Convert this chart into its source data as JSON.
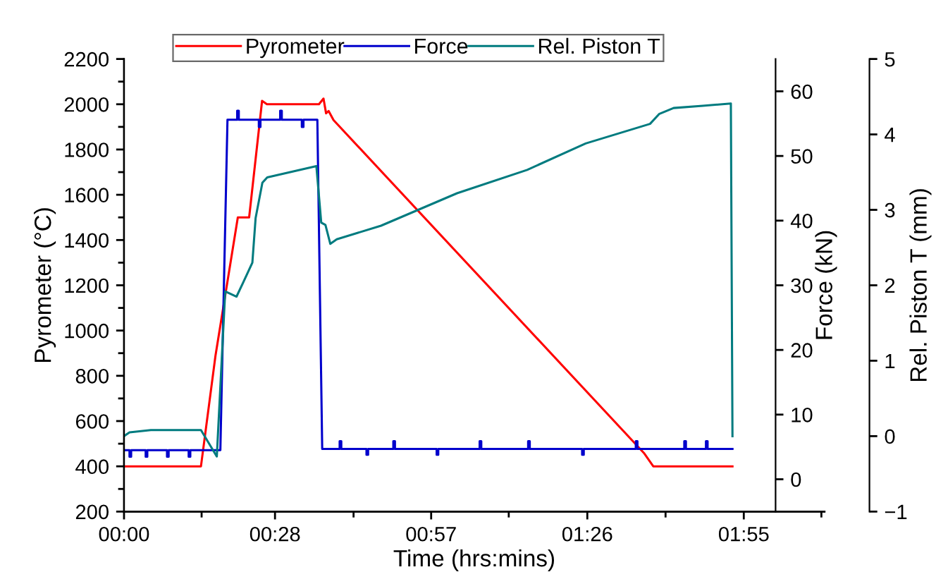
{
  "chart_data": {
    "type": "line",
    "xlabel": "Time (hrs:mins)",
    "ylabel": "Pyrometer (°C)",
    "y2label": "Force (kN)",
    "y3label": "Rel. Piston T (mm)",
    "xlim": [
      0,
      2.167
    ],
    "xticks": [
      {
        "value": 0,
        "label": "00:00"
      },
      {
        "value": 0.24,
        "label": null
      },
      {
        "value": 0.467,
        "label": "00:28"
      },
      {
        "value": 0.71,
        "label": null
      },
      {
        "value": 0.95,
        "label": "00:57"
      },
      {
        "value": 1.19,
        "label": null
      },
      {
        "value": 1.433,
        "label": "01:26"
      },
      {
        "value": 1.675,
        "label": null
      },
      {
        "value": 1.917,
        "label": "01:55"
      },
      {
        "value": 2.157,
        "label": null
      }
    ],
    "ylim": [
      200,
      2200
    ],
    "yticks": [
      200,
      {
        "value": 300,
        "label": null
      },
      400,
      {
        "value": 500,
        "label": null
      },
      600,
      {
        "value": 700,
        "label": null
      },
      800,
      {
        "value": 900,
        "label": null
      },
      1000,
      {
        "value": 1100,
        "label": null
      },
      1200,
      {
        "value": 1300,
        "label": null
      },
      1400,
      {
        "value": 1500,
        "label": null
      },
      1600,
      {
        "value": 1700,
        "label": null
      },
      1800,
      {
        "value": 1900,
        "label": null
      },
      2000,
      {
        "value": 2100,
        "label": null
      },
      2200
    ],
    "y2lim": [
      -5,
      65
    ],
    "y2ticks": [
      0,
      10,
      20,
      30,
      40,
      50,
      60
    ],
    "y3lim": [
      -1,
      5
    ],
    "y3ticks": [
      {
        "value": -1,
        "label": "−1"
      },
      0,
      1,
      2,
      3,
      4,
      5
    ],
    "grid": false,
    "legend": "top",
    "marker": "none",
    "line_style": "solid",
    "series": [
      {
        "name": "Pyrometer",
        "color": "#ff0000",
        "axis": "y",
        "x": [
          0,
          0.238,
          0.283,
          0.352,
          0.387,
          0.427,
          0.442,
          0.603,
          0.617,
          0.625,
          0.633,
          0.648,
          1.608,
          1.637,
          1.882
        ],
        "values": [
          400,
          400,
          890,
          1500,
          1500,
          2015,
          2000,
          2000,
          2025,
          1960,
          1970,
          1930,
          459,
          400,
          400
        ]
      },
      {
        "name": "Force",
        "color": "#0000cc",
        "axis": "y2",
        "x": [
          0,
          0.017,
          0.017,
          0.022,
          0.022,
          0.067,
          0.067,
          0.072,
          0.072,
          0.133,
          0.133,
          0.138,
          0.138,
          0.2,
          0.2,
          0.205,
          0.205,
          0.283,
          0.298,
          0.32,
          0.35,
          0.35,
          0.355,
          0.355,
          0.417,
          0.417,
          0.422,
          0.422,
          0.483,
          0.483,
          0.488,
          0.488,
          0.55,
          0.55,
          0.555,
          0.555,
          0.598,
          0.613,
          0.667,
          0.667,
          0.672,
          0.672,
          0.75,
          0.75,
          0.755,
          0.755,
          0.833,
          0.833,
          0.838,
          0.838,
          0.967,
          0.967,
          0.972,
          0.972,
          1.1,
          1.1,
          1.105,
          1.105,
          1.25,
          1.25,
          1.255,
          1.255,
          1.417,
          1.417,
          1.422,
          1.422,
          1.583,
          1.583,
          1.588,
          1.588,
          1.733,
          1.733,
          1.738,
          1.738,
          1.8,
          1.8,
          1.805,
          1.805,
          1.882
        ],
        "values": [
          4.5,
          4.5,
          3.5,
          3.5,
          4.5,
          4.5,
          3.5,
          3.5,
          4.5,
          4.5,
          3.5,
          3.5,
          4.5,
          4.5,
          3.5,
          3.5,
          4.5,
          4.5,
          4.5,
          55.6,
          55.6,
          57.0,
          57.0,
          55.6,
          55.6,
          54.5,
          54.5,
          55.6,
          55.6,
          57.0,
          57.0,
          55.6,
          55.6,
          54.5,
          54.5,
          55.6,
          55.6,
          4.7,
          4.7,
          5.9,
          5.9,
          4.7,
          4.7,
          3.8,
          3.8,
          4.7,
          4.7,
          5.9,
          5.9,
          4.7,
          4.7,
          3.8,
          3.8,
          4.7,
          4.7,
          5.9,
          5.9,
          4.7,
          4.7,
          5.9,
          5.9,
          4.7,
          4.7,
          3.8,
          3.8,
          4.7,
          4.7,
          5.9,
          5.9,
          4.7,
          4.7,
          5.9,
          5.9,
          4.7,
          4.7,
          5.9,
          5.9,
          4.7,
          4.7
        ]
      },
      {
        "name": "Rel. Piston T",
        "color": "#007b7f",
        "axis": "y3",
        "x": [
          0,
          0.017,
          0.083,
          0.238,
          0.287,
          0.313,
          0.348,
          0.37,
          0.397,
          0.407,
          0.428,
          0.443,
          0.595,
          0.61,
          0.623,
          0.638,
          0.658,
          0.795,
          1.03,
          1.247,
          1.428,
          1.627,
          1.655,
          1.7,
          1.79,
          1.877,
          1.882
        ],
        "values": [
          0.0,
          0.05,
          0.08,
          0.08,
          -0.27,
          1.92,
          1.85,
          2.05,
          2.3,
          2.89,
          3.36,
          3.43,
          3.58,
          2.83,
          2.8,
          2.55,
          2.61,
          2.79,
          3.22,
          3.53,
          3.88,
          4.14,
          4.27,
          4.35,
          4.38,
          4.41,
          0.0
        ]
      }
    ]
  }
}
